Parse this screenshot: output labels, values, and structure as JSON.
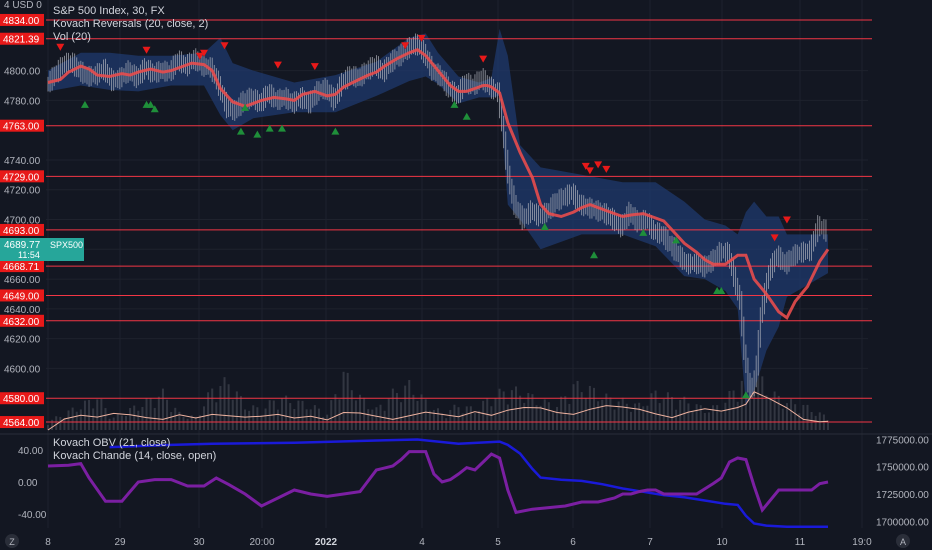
{
  "legend": {
    "price_top_label": "4 USD 0",
    "symbol": "S&P 500 Index, 30, FX",
    "indicator_reversals": "Kovach Reversals (20, close, 2)",
    "indicator_vol": "Vol (20)",
    "indicator_obv": "Kovach OBV (21, close)",
    "indicator_chande": "Kovach Chande (14, close, open)"
  },
  "current_price": {
    "value": "4689.77",
    "symbol": "SPX500",
    "countdown": "11:54"
  },
  "bottom_icons": {
    "left": "Z",
    "right": "A"
  },
  "colors": {
    "background": "#131722",
    "grid": "#1e222d",
    "level_line": "#f23645",
    "band_fill": "#1f3a6e",
    "ma_line": "#e84c4c",
    "candle": "#b2b5be",
    "up_marker": "#1f8f3a",
    "down_marker": "#e81919",
    "obv_line": "#1a1ad9",
    "chande_line": "#7b1fa2",
    "price_tag": "#26a69a",
    "text": "#b2b5be"
  },
  "chart_data": [
    {
      "type": "line",
      "title": "S&P 500 Index, 30, FX",
      "x_ticks": [
        "8",
        "29",
        "30",
        "20:00",
        "2022",
        "4",
        "5",
        "6",
        "7",
        "10",
        "11",
        "19:0"
      ],
      "y_ticks": [
        4834.0,
        4800.0,
        4780.0,
        4740.0,
        4720.0,
        4700.0,
        4680.0,
        4660.0,
        4640.0,
        4620.0,
        4600.0
      ],
      "ylim": [
        4560,
        4838
      ],
      "horizontal_levels": [
        4834.0,
        4821.39,
        4763.0,
        4729.0,
        4693.0,
        4668.71,
        4649.0,
        4632.0,
        4580.0,
        4564.0
      ],
      "series": [
        {
          "kind": "ma",
          "x": [
            0,
            3,
            5,
            8,
            10,
            12,
            15,
            18,
            20,
            22,
            25,
            28,
            30,
            32,
            35,
            38,
            40,
            42,
            45,
            48,
            50,
            52,
            55,
            58,
            60,
            62,
            65,
            68,
            70,
            72,
            75,
            78,
            80,
            82,
            85,
            88,
            90,
            92,
            95,
            98,
            100,
            101,
            102,
            103,
            104,
            105,
            106,
            107,
            108,
            110,
            112,
            115,
            118,
            120,
            122,
            125,
            128,
            130,
            132,
            135,
            138,
            140,
            142,
            145,
            148,
            150,
            152,
            155,
            158,
            160,
            162,
            165,
            168,
            170,
            172,
            175,
            178,
            180,
            182,
            185,
            188,
            190
          ],
          "values": [
            4792,
            4794,
            4799,
            4803,
            4801,
            4797,
            4796,
            4798,
            4797,
            4799,
            4801,
            4799,
            4800,
            4802,
            4805,
            4804,
            4800,
            4788,
            4779,
            4776,
            4778,
            4780,
            4782,
            4781,
            4780,
            4784,
            4786,
            4783,
            4784,
            4789,
            4793,
            4797,
            4799,
            4803,
            4808,
            4812,
            4814,
            4810,
            4800,
            4790,
            4786,
            4786,
            4786,
            4787,
            4788,
            4789,
            4790,
            4790,
            4789,
            4785,
            4765,
            4745,
            4728,
            4710,
            4704,
            4702,
            4705,
            4708,
            4710,
            4707,
            4704,
            4702,
            4703,
            4704,
            4701,
            4699,
            4693,
            4684,
            4678,
            4673,
            4670,
            4670,
            4676,
            4676,
            4660,
            4650,
            4638,
            4634,
            4645,
            4655,
            4672,
            4680
          ]
        },
        {
          "kind": "band_upper",
          "x": [
            0,
            8,
            15,
            22,
            30,
            38,
            42,
            45,
            50,
            60,
            70,
            80,
            88,
            92,
            95,
            100,
            105,
            108,
            110,
            112,
            115,
            120,
            130,
            140,
            148,
            155,
            160,
            165,
            168,
            170,
            172,
            175,
            178,
            180,
            185,
            190
          ],
          "values": [
            4800,
            4812,
            4812,
            4810,
            4810,
            4812,
            4822,
            4805,
            4800,
            4792,
            4797,
            4806,
            4822,
            4825,
            4812,
            4796,
            4792,
            4795,
            4828,
            4810,
            4750,
            4735,
            4730,
            4725,
            4725,
            4712,
            4700,
            4696,
            4690,
            4705,
            4712,
            4702,
            4702,
            4690,
            4690,
            4690
          ]
        },
        {
          "kind": "band_lower",
          "x": [
            0,
            8,
            15,
            22,
            30,
            38,
            42,
            45,
            50,
            60,
            70,
            80,
            88,
            92,
            95,
            100,
            105,
            108,
            110,
            112,
            115,
            120,
            130,
            140,
            148,
            155,
            160,
            165,
            168,
            170,
            172,
            175,
            178,
            180,
            185,
            190
          ],
          "values": [
            4786,
            4790,
            4787,
            4786,
            4790,
            4790,
            4770,
            4760,
            4768,
            4772,
            4772,
            4783,
            4793,
            4796,
            4791,
            4778,
            4782,
            4782,
            4783,
            4710,
            4700,
            4680,
            4690,
            4690,
            4682,
            4662,
            4660,
            4652,
            4640,
            4575,
            4585,
            4612,
            4628,
            4648,
            4656,
            4664
          ]
        },
        {
          "kind": "price",
          "x": [
            0,
            2,
            4,
            6,
            8,
            10,
            12,
            14,
            16,
            18,
            20,
            22,
            24,
            26,
            28,
            30,
            32,
            34,
            36,
            38,
            40,
            42,
            44,
            46,
            48,
            50,
            52,
            54,
            56,
            58,
            60,
            62,
            64,
            66,
            68,
            70,
            72,
            74,
            76,
            78,
            80,
            82,
            84,
            86,
            88,
            90,
            92,
            94,
            96,
            98,
            100,
            102,
            104,
            106,
            108,
            110,
            111,
            112,
            113,
            114,
            116,
            118,
            120,
            122,
            124,
            126,
            128,
            130,
            132,
            134,
            136,
            138,
            140,
            142,
            144,
            146,
            148,
            150,
            152,
            154,
            156,
            158,
            160,
            162,
            164,
            166,
            168,
            169,
            170,
            171,
            172,
            173,
            174,
            176,
            178,
            180,
            182,
            184,
            186,
            188,
            190
          ],
          "values": [
            4790,
            4797,
            4804,
            4806,
            4800,
            4796,
            4797,
            4801,
            4793,
            4795,
            4800,
            4795,
            4802,
            4798,
            4800,
            4799,
            4807,
            4803,
            4808,
            4803,
            4802,
            4790,
            4775,
            4773,
            4780,
            4782,
            4778,
            4785,
            4780,
            4782,
            4778,
            4782,
            4778,
            4786,
            4788,
            4780,
            4792,
            4797,
            4795,
            4800,
            4804,
            4799,
            4806,
            4810,
            4815,
            4818,
            4812,
            4800,
            4796,
            4788,
            4783,
            4792,
            4790,
            4795,
            4789,
            4785,
            4765,
            4740,
            4722,
            4710,
            4700,
            4706,
            4702,
            4705,
            4712,
            4715,
            4718,
            4710,
            4708,
            4706,
            4704,
            4700,
            4695,
            4705,
            4698,
            4700,
            4692,
            4690,
            4683,
            4676,
            4670,
            4671,
            4668,
            4672,
            4678,
            4678,
            4656,
            4645,
            4612,
            4590,
            4586,
            4602,
            4636,
            4665,
            4676,
            4670,
            4676,
            4678,
            4679,
            4696,
            4692
          ]
        },
        {
          "kind": "volume",
          "x": [
            0,
            4,
            8,
            12,
            16,
            20,
            24,
            28,
            32,
            36,
            40,
            44,
            48,
            52,
            56,
            60,
            64,
            68,
            72,
            76,
            80,
            84,
            88,
            92,
            96,
            100,
            104,
            108,
            112,
            116,
            120,
            124,
            128,
            132,
            136,
            140,
            144,
            148,
            152,
            156,
            160,
            164,
            168,
            170,
            172,
            174,
            176,
            180,
            184,
            188,
            190
          ],
          "values": [
            2,
            4,
            6,
            8,
            3,
            5,
            7,
            9,
            4,
            3,
            10,
            12,
            6,
            5,
            8,
            7,
            6,
            4,
            14,
            8,
            5,
            9,
            11,
            7,
            4,
            6,
            5,
            8,
            10,
            9,
            7,
            6,
            11,
            10,
            8,
            7,
            6,
            9,
            8,
            7,
            5,
            6,
            11,
            13,
            14,
            12,
            9,
            7,
            6,
            4,
            3
          ]
        },
        {
          "kind": "vol_ma",
          "x": [
            0,
            4,
            8,
            12,
            16,
            20,
            24,
            28,
            32,
            36,
            40,
            44,
            48,
            52,
            56,
            60,
            64,
            68,
            72,
            76,
            80,
            84,
            88,
            92,
            96,
            100,
            104,
            108,
            112,
            116,
            120,
            124,
            128,
            132,
            136,
            140,
            144,
            148,
            152,
            156,
            160,
            164,
            168,
            170,
            172,
            176,
            180,
            184,
            188,
            190
          ],
          "values": [
            0,
            2.4,
            3.2,
            2.8,
            3.6,
            3.3,
            2.7,
            2.3,
            3.3,
            2.6,
            3.4,
            3.1,
            2.8,
            3.0,
            3.4,
            2.6,
            3.0,
            2.2,
            3.8,
            3.7,
            3.0,
            2.3,
            3.1,
            3.9,
            3.4,
            2.9,
            4.0,
            3.2,
            4.3,
            4.9,
            4.8,
            3.8,
            3.4,
            4.5,
            5.3,
            5.0,
            4.5,
            3.5,
            2.7,
            3.9,
            4.6,
            4.1,
            4.9,
            5.6,
            8.3,
            6.7,
            4.8,
            2.3,
            1.8,
            1.9
          ]
        },
        {
          "kind": "down_markers",
          "x": [
            3,
            24,
            37,
            38,
            43,
            56,
            65,
            87,
            91,
            106,
            131,
            132,
            134,
            136,
            177,
            180
          ],
          "values": [
            4816,
            4814,
            4810,
            4812,
            4817,
            4804,
            4803,
            4817,
            4822,
            4808,
            4736,
            4733,
            4737,
            4734,
            4688,
            4700
          ]
        },
        {
          "kind": "up_markers",
          "x": [
            9,
            24,
            25,
            26,
            47,
            48,
            51,
            54,
            57,
            70,
            99,
            102,
            121,
            133,
            145,
            153,
            163,
            164,
            170
          ],
          "values": [
            4777,
            4777,
            4777,
            4774,
            4759,
            4775,
            4757,
            4761,
            4761,
            4759,
            4777,
            4769,
            4695,
            4676,
            4691,
            4686,
            4652,
            4652,
            4582
          ]
        }
      ]
    },
    {
      "type": "line",
      "title": "Kovach OBV (21, close) / Kovach Chande (14, close, open)",
      "left_y_ticks": [
        "40.00",
        "0.00",
        "-40.00"
      ],
      "right_y_ticks": [
        "1775000.00",
        "1750000.00",
        "1725000.00",
        "1700000.00"
      ],
      "left_ylim": [
        -60,
        60
      ],
      "right_ylim": [
        1692000,
        1780000
      ],
      "series": [
        {
          "name": "Kovach OBV (21, close)",
          "axis": "right",
          "x": [
            15,
            30,
            40,
            60,
            70,
            80,
            90,
            100,
            110,
            112,
            115,
            118,
            120,
            125,
            130,
            135,
            140,
            145,
            150,
            155,
            160,
            165,
            168,
            170,
            172,
            175,
            180,
            185,
            190
          ],
          "values": [
            1768000,
            1770000,
            1771000,
            1772000,
            1773000,
            1774000,
            1775000,
            1771000,
            1773000,
            1770000,
            1762000,
            1748000,
            1740000,
            1738000,
            1737000,
            1734000,
            1730000,
            1727000,
            1724000,
            1722000,
            1719000,
            1716000,
            1715000,
            1705000,
            1698000,
            1696000,
            1695000,
            1695000,
            1695000
          ]
        },
        {
          "name": "Kovach Chande (14, close, open)",
          "axis": "left",
          "x": [
            0,
            5,
            8,
            10,
            14,
            18,
            22,
            26,
            30,
            34,
            38,
            41,
            44,
            48,
            52,
            56,
            60,
            64,
            68,
            72,
            76,
            80,
            84,
            86,
            88,
            90,
            92,
            94,
            96,
            98,
            100,
            102,
            104,
            106,
            108,
            110,
            112,
            114,
            118,
            122,
            126,
            130,
            134,
            138,
            140,
            142,
            144,
            146,
            148,
            150,
            154,
            158,
            162,
            164,
            166,
            168,
            170,
            172,
            174,
            178,
            182,
            186,
            188,
            190
          ],
          "values": [
            20,
            21,
            23,
            5,
            -24,
            -24,
            0,
            3,
            3,
            -5,
            -5,
            5,
            -3,
            -15,
            -30,
            -20,
            -10,
            -15,
            -18,
            -15,
            -12,
            15,
            20,
            28,
            38,
            38,
            38,
            10,
            0,
            3,
            10,
            18,
            15,
            25,
            35,
            30,
            -10,
            -38,
            -34,
            -32,
            -30,
            -25,
            -25,
            -20,
            -15,
            -15,
            -12,
            -10,
            -10,
            -15,
            -15,
            -15,
            -2,
            5,
            25,
            30,
            28,
            -5,
            -35,
            -10,
            -10,
            -10,
            -2,
            0
          ]
        }
      ]
    }
  ]
}
